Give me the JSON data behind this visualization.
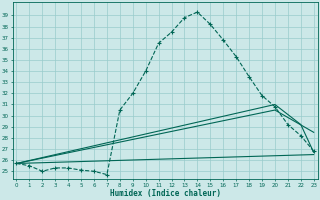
{
  "xlabel": "Humidex (Indice chaleur)",
  "bg_color": "#cce8e8",
  "grid_color": "#99cccc",
  "line_color": "#006655",
  "xlim": [
    -0.3,
    23.3
  ],
  "ylim": [
    24.3,
    40.2
  ],
  "xticks": [
    0,
    1,
    2,
    3,
    4,
    5,
    6,
    7,
    8,
    9,
    10,
    11,
    12,
    13,
    14,
    15,
    16,
    17,
    18,
    19,
    20,
    21,
    22,
    23
  ],
  "yticks": [
    25,
    26,
    27,
    28,
    29,
    30,
    31,
    32,
    33,
    34,
    35,
    36,
    37,
    38,
    39
  ],
  "main_x": [
    0,
    1,
    2,
    3,
    4,
    5,
    6,
    7,
    8,
    9,
    10,
    11,
    12,
    13,
    14,
    15,
    16,
    17,
    18,
    19,
    20,
    21,
    22,
    23
  ],
  "main_y": [
    25.7,
    25.5,
    25.0,
    25.3,
    25.3,
    25.1,
    25.0,
    24.7,
    30.5,
    32.0,
    34.0,
    36.5,
    37.5,
    38.8,
    39.3,
    38.2,
    36.8,
    35.3,
    33.5,
    31.8,
    30.8,
    29.2,
    28.2,
    26.8
  ],
  "line2_x": [
    0,
    23
  ],
  "line2_y": [
    25.7,
    26.5
  ],
  "line3_x": [
    0,
    20,
    23
  ],
  "line3_y": [
    25.7,
    30.5,
    28.5
  ],
  "line4_x": [
    0,
    20,
    22,
    23
  ],
  "line4_y": [
    25.7,
    31.0,
    29.2,
    26.7
  ]
}
